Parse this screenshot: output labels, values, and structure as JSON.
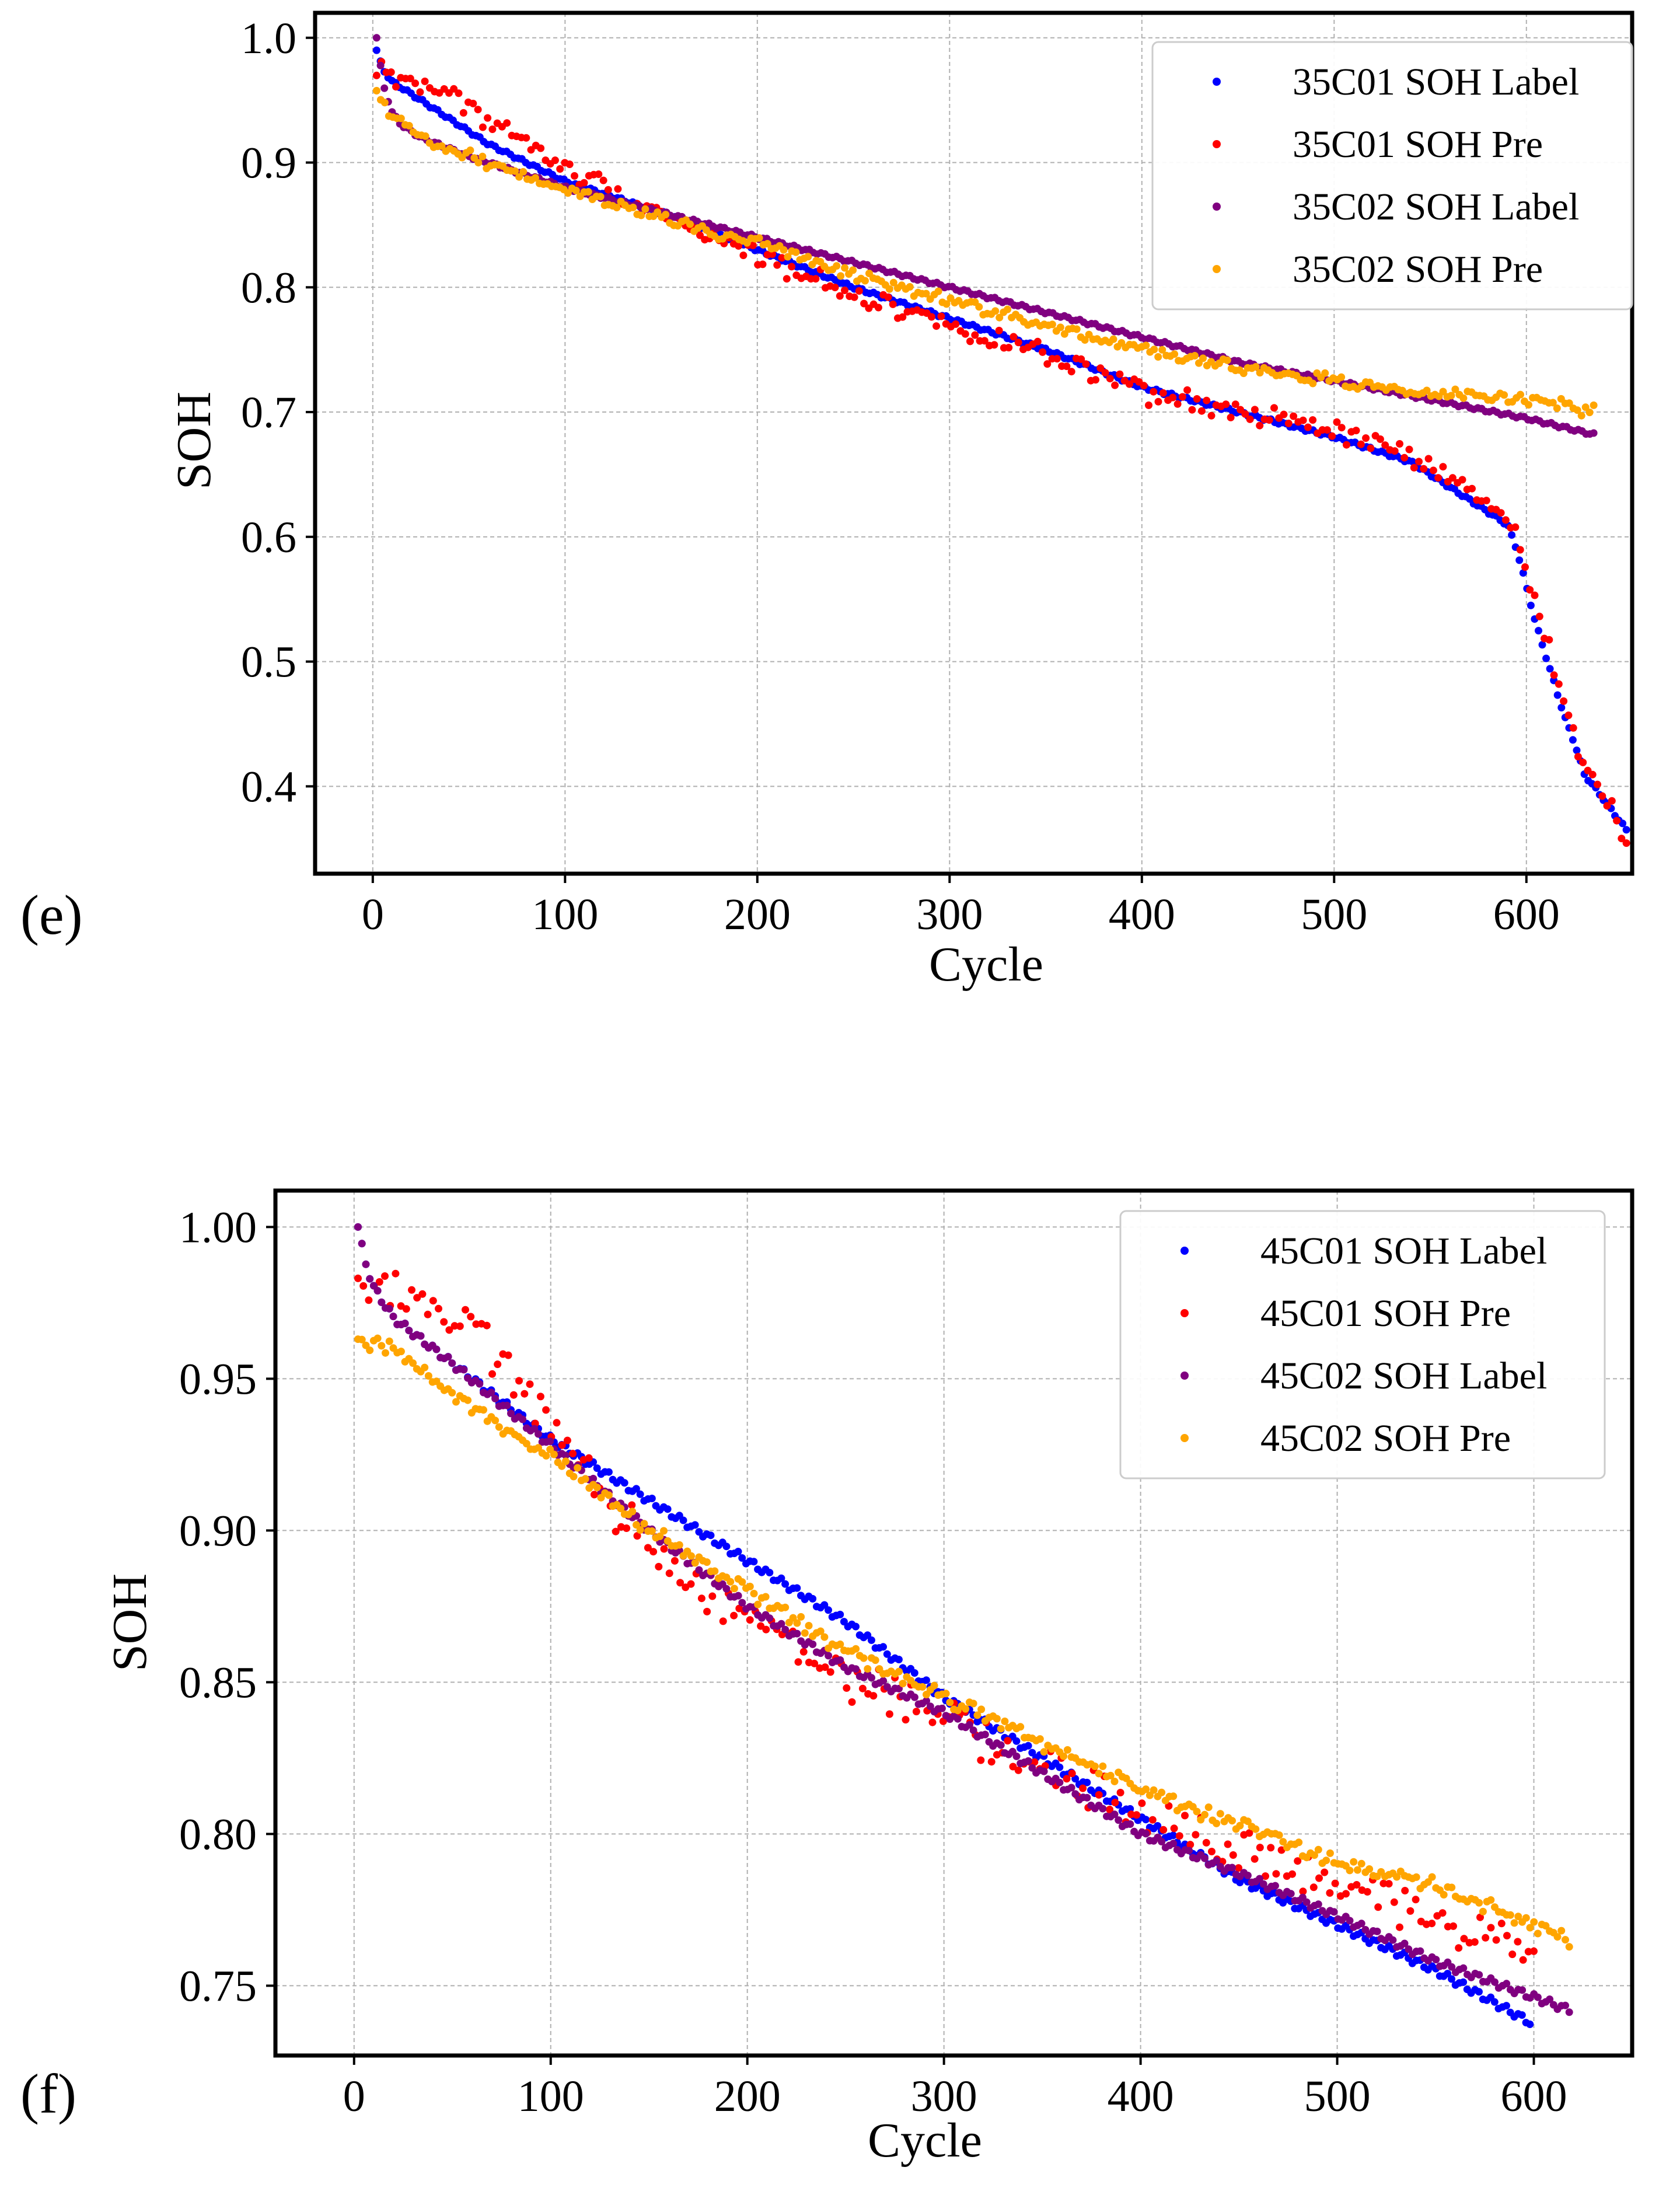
{
  "figure": {
    "panels": [
      {
        "label": "(e)",
        "xlabel": "Cycle",
        "ylabel": "SOH",
        "xlim": [
          -30,
          655
        ],
        "ylim": [
          0.33,
          1.02
        ],
        "xticks": [
          0,
          100,
          200,
          300,
          400,
          500,
          600
        ],
        "xtick_labels": [
          "0",
          "100",
          "200",
          "300",
          "400",
          "500",
          "600"
        ],
        "yticks": [
          0.4,
          0.5,
          0.6,
          0.7,
          0.8,
          0.9,
          1.0
        ],
        "ytick_labels": [
          "0.4",
          "0.5",
          "0.6",
          "0.7",
          "0.8",
          "0.9",
          "1.0"
        ],
        "legend": [
          "35C01 SOH Label",
          "35C01 SOH Pre",
          "35C02 SOH Label",
          "35C02 SOH Pre"
        ]
      },
      {
        "label": "(f)",
        "xlabel": "Cycle",
        "ylabel": "SOH",
        "xlim": [
          -40,
          650
        ],
        "ylim": [
          0.727,
          1.012
        ],
        "xticks": [
          0,
          100,
          200,
          300,
          400,
          500,
          600
        ],
        "xtick_labels": [
          "0",
          "100",
          "200",
          "300",
          "400",
          "500",
          "600"
        ],
        "yticks": [
          0.75,
          0.8,
          0.85,
          0.9,
          0.95,
          1.0
        ],
        "ytick_labels": [
          "0.75",
          "0.80",
          "0.85",
          "0.90",
          "0.95",
          "1.00"
        ],
        "legend": [
          "45C01 SOH Label",
          "45C01 SOH Pre",
          "45C02 SOH Label",
          "45C02 SOH Pre"
        ]
      }
    ]
  },
  "colors": {
    "label_c01": "#0000ff",
    "pre_c01": "#ff0000",
    "label_c02": "#800080",
    "pre_c02": "#ffa500"
  },
  "chart_data": [
    {
      "type": "scatter",
      "title": "",
      "xlabel": "Cycle",
      "ylabel": "SOH",
      "xlim": [
        -30,
        655
      ],
      "ylim": [
        0.33,
        1.02
      ],
      "grid": true,
      "legend_position": "top-right",
      "series": [
        {
          "name": "35C01 SOH Label",
          "color": "#0000ff",
          "points": 328,
          "x": [
            2,
            5,
            10,
            20,
            40,
            60,
            80,
            100,
            150,
            200,
            250,
            300,
            350,
            400,
            450,
            500,
            540,
            570,
            590,
            595,
            600,
            605,
            610,
            615,
            620,
            625,
            630,
            640,
            652
          ],
          "y": [
            0.99,
            0.975,
            0.965,
            0.955,
            0.935,
            0.915,
            0.9,
            0.885,
            0.86,
            0.83,
            0.8,
            0.775,
            0.75,
            0.72,
            0.7,
            0.68,
            0.66,
            0.63,
            0.61,
            0.59,
            0.56,
            0.53,
            0.505,
            0.48,
            0.455,
            0.435,
            0.41,
            0.39,
            0.365
          ]
        },
        {
          "name": "35C01 SOH Pre",
          "color": "#ff0000",
          "points": 260,
          "noise": 0.007,
          "x": [
            2,
            5,
            10,
            20,
            40,
            60,
            80,
            100,
            150,
            200,
            250,
            300,
            350,
            400,
            450,
            500,
            540,
            570,
            590,
            595,
            600,
            605,
            610,
            615,
            620,
            625,
            630,
            640,
            652
          ],
          "y": [
            0.97,
            0.975,
            0.97,
            0.965,
            0.955,
            0.935,
            0.915,
            0.895,
            0.86,
            0.825,
            0.795,
            0.77,
            0.745,
            0.715,
            0.7,
            0.685,
            0.665,
            0.635,
            0.615,
            0.6,
            0.575,
            0.55,
            0.525,
            0.49,
            0.46,
            0.44,
            0.415,
            0.395,
            0.36
          ]
        },
        {
          "name": "35C02 SOH Label",
          "color": "#800080",
          "points": 316,
          "x": [
            2,
            5,
            10,
            15,
            25,
            50,
            100,
            150,
            200,
            250,
            300,
            350,
            400,
            450,
            500,
            550,
            600,
            635
          ],
          "y": [
            1.0,
            0.965,
            0.94,
            0.93,
            0.92,
            0.905,
            0.88,
            0.86,
            0.84,
            0.82,
            0.8,
            0.78,
            0.76,
            0.74,
            0.725,
            0.71,
            0.695,
            0.682
          ]
        },
        {
          "name": "35C02 SOH Pre",
          "color": "#ffa500",
          "points": 300,
          "noise": 0.004,
          "x": [
            2,
            10,
            25,
            50,
            100,
            150,
            200,
            250,
            300,
            350,
            400,
            450,
            500,
            550,
            600,
            635
          ],
          "y": [
            0.955,
            0.935,
            0.92,
            0.905,
            0.88,
            0.855,
            0.835,
            0.81,
            0.79,
            0.77,
            0.75,
            0.735,
            0.725,
            0.715,
            0.71,
            0.7
          ]
        }
      ]
    },
    {
      "type": "scatter",
      "title": "",
      "xlabel": "Cycle",
      "ylabel": "SOH",
      "xlim": [
        -40,
        650
      ],
      "ylim": [
        0.727,
        1.012
      ],
      "grid": true,
      "legend_position": "top-right",
      "series": [
        {
          "name": "45C01 SOH Label",
          "color": "#0000ff",
          "points": 300,
          "x": [
            2,
            5,
            10,
            20,
            50,
            100,
            150,
            200,
            250,
            300,
            350,
            400,
            450,
            500,
            550,
            598
          ],
          "y": [
            1.0,
            0.99,
            0.98,
            0.97,
            0.955,
            0.93,
            0.91,
            0.89,
            0.87,
            0.845,
            0.825,
            0.805,
            0.785,
            0.77,
            0.755,
            0.738
          ]
        },
        {
          "name": "45C01 SOH Pre",
          "color": "#ff0000",
          "points": 220,
          "noise": 0.006,
          "x": [
            2,
            5,
            10,
            30,
            60,
            90,
            120,
            150,
            200,
            250,
            300,
            350,
            400,
            450,
            500,
            550,
            600
          ],
          "y": [
            0.978,
            0.985,
            0.982,
            0.978,
            0.965,
            0.945,
            0.915,
            0.895,
            0.872,
            0.852,
            0.838,
            0.822,
            0.806,
            0.795,
            0.782,
            0.772,
            0.765
          ]
        },
        {
          "name": "45C02 SOH Label",
          "color": "#800080",
          "points": 310,
          "x": [
            2,
            5,
            10,
            20,
            50,
            100,
            150,
            200,
            250,
            300,
            350,
            400,
            450,
            500,
            550,
            618
          ],
          "y": [
            1.0,
            0.99,
            0.98,
            0.97,
            0.955,
            0.928,
            0.9,
            0.875,
            0.855,
            0.84,
            0.82,
            0.8,
            0.787,
            0.773,
            0.758,
            0.742
          ]
        },
        {
          "name": "45C02 SOH Pre",
          "color": "#ffa500",
          "points": 310,
          "noise": 0.002,
          "x": [
            2,
            20,
            50,
            100,
            150,
            200,
            250,
            300,
            350,
            400,
            450,
            500,
            550,
            580,
            600,
            618
          ],
          "y": [
            0.962,
            0.96,
            0.945,
            0.925,
            0.9,
            0.88,
            0.86,
            0.845,
            0.83,
            0.815,
            0.803,
            0.79,
            0.783,
            0.775,
            0.77,
            0.765
          ]
        }
      ]
    }
  ]
}
